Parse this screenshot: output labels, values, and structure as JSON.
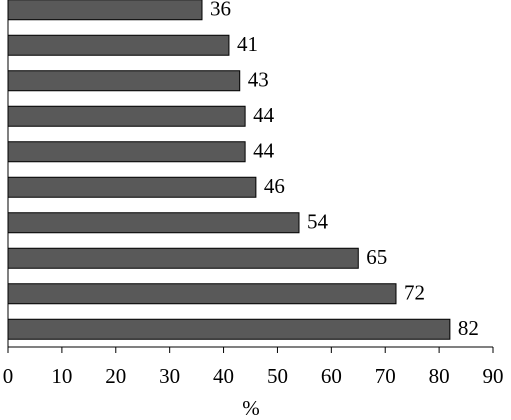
{
  "chart_data": {
    "type": "bar",
    "orientation": "horizontal",
    "categories": [
      null,
      null,
      null,
      null,
      null,
      null,
      null,
      null,
      null,
      null
    ],
    "values": [
      36,
      41,
      43,
      44,
      44,
      46,
      54,
      65,
      72,
      82
    ],
    "color": "#595959",
    "xlim": [
      0,
      90
    ],
    "xticks": [
      0,
      10,
      20,
      30,
      40,
      50,
      60,
      70,
      80,
      90
    ],
    "xlabel": "%",
    "grid": false
  }
}
